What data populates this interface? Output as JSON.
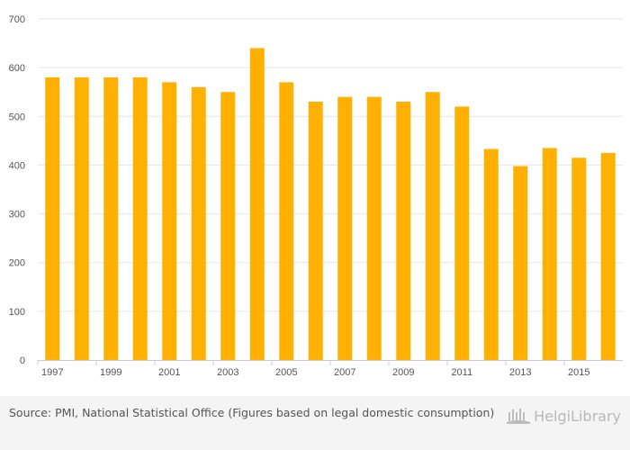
{
  "chart_data": {
    "type": "bar",
    "categories": [
      "1997",
      "1998",
      "1999",
      "2000",
      "2001",
      "2002",
      "2003",
      "2004",
      "2005",
      "2006",
      "2007",
      "2008",
      "2009",
      "2010",
      "2011",
      "2012",
      "2013",
      "2014",
      "2015",
      "2016"
    ],
    "values": [
      580,
      580,
      580,
      580,
      570,
      560,
      550,
      640,
      570,
      530,
      540,
      540,
      530,
      550,
      520,
      433,
      398,
      435,
      415,
      425
    ],
    "x_tick_labels": [
      "1997",
      "1999",
      "2001",
      "2003",
      "2005",
      "2007",
      "2009",
      "2011",
      "2013",
      "2015"
    ],
    "y_ticks": [
      0,
      100,
      200,
      300,
      400,
      500,
      600,
      700
    ],
    "ylim": [
      0,
      700
    ],
    "grid": true,
    "title": "",
    "xlabel": "",
    "ylabel": "",
    "colors": {
      "bar": "#FFB000",
      "grid": "#e6e6e6",
      "axis": "#cccccc"
    }
  },
  "footer": {
    "source": "Source: PMI, National Statistical Office (Figures based on legal domestic consumption)",
    "logo_text": "HelgiLibrary"
  }
}
